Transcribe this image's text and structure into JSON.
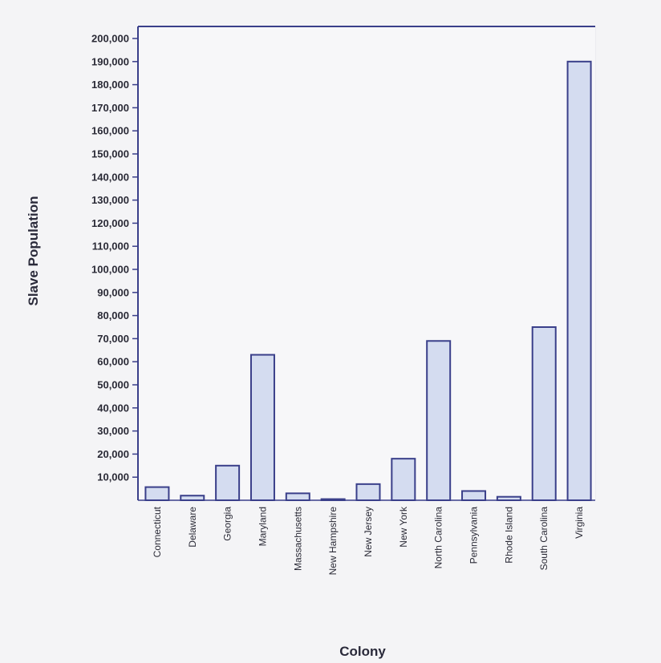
{
  "chart_data": {
    "type": "bar",
    "xlabel": "Colony",
    "ylabel": "Slave Population",
    "ylim": [
      0,
      200000
    ],
    "yticks": [
      10000,
      20000,
      30000,
      40000,
      50000,
      60000,
      70000,
      80000,
      90000,
      100000,
      110000,
      120000,
      130000,
      140000,
      150000,
      160000,
      170000,
      180000,
      190000,
      200000
    ],
    "ytick_labels": [
      "10,000",
      "20,000",
      "30,000",
      "40,000",
      "50,000",
      "60,000",
      "70,000",
      "80,000",
      "90,000",
      "100,000",
      "110,000",
      "120,000",
      "130,000",
      "140,000",
      "150,000",
      "160,000",
      "170,000",
      "180,000",
      "190,000",
      "200,000"
    ],
    "categories": [
      "Connecticut",
      "Delaware",
      "Georgia",
      "Maryland",
      "Massachusetts",
      "New Hampshire",
      "New Jersey",
      "New York",
      "North Carolina",
      "Pennsylvania",
      "Rhode Island",
      "South Carolina",
      "Virginia"
    ],
    "values": [
      5700,
      2000,
      15000,
      63000,
      3000,
      500,
      7000,
      18000,
      69000,
      4000,
      1500,
      75000,
      190000
    ],
    "grid": true,
    "legend": "none",
    "colors": {
      "bar_fill": "#d4dcf0",
      "bar_stroke": "#3a3f8a",
      "axis": "#3a3f8a",
      "grid": "#e4e4ea",
      "background": "#f4f4f6"
    }
  }
}
